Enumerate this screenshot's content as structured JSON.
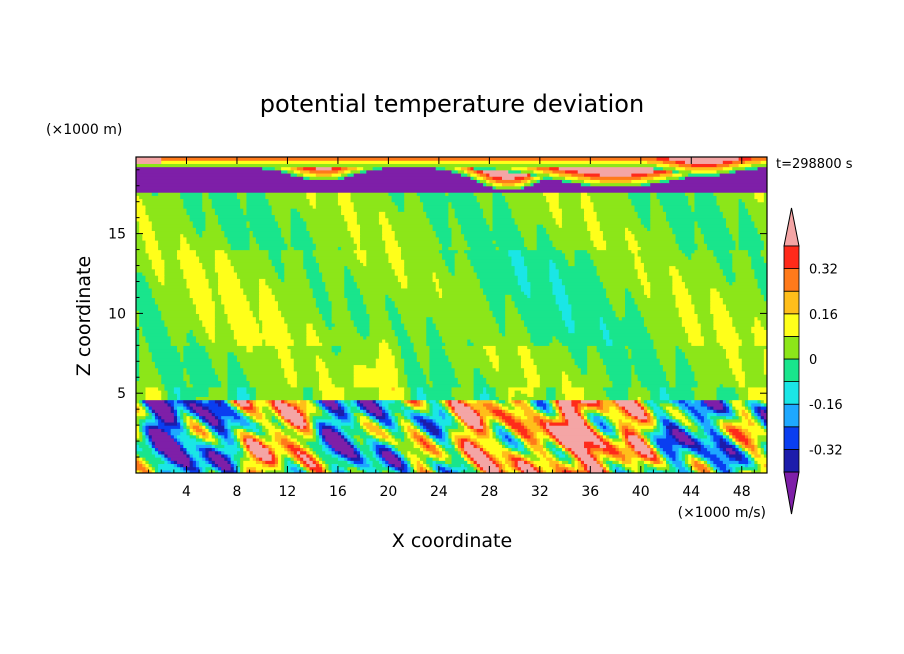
{
  "chart_data": {
    "type": "heatmap",
    "title": "potential temperature deviation",
    "xlabel": "X coordinate",
    "ylabel": "Z coordinate",
    "x_unit": "(×1000 m/s)",
    "y_unit": "(×1000 m)",
    "time_label": "t=298800 s",
    "xlim": [
      0,
      50
    ],
    "ylim": [
      0,
      19.8
    ],
    "x_ticks": [
      4,
      8,
      12,
      16,
      20,
      24,
      28,
      32,
      36,
      40,
      44,
      48
    ],
    "y_ticks": [
      5,
      10,
      15
    ],
    "colorbar": {
      "levels": [
        -0.4,
        -0.32,
        -0.24,
        -0.16,
        -0.08,
        0,
        0.08,
        0.16,
        0.24,
        0.32,
        0.4
      ],
      "colors": [
        "#7e1fa8",
        "#1c1cab",
        "#0a3ef0",
        "#1ea8ff",
        "#1ae6e6",
        "#19e58c",
        "#8ce619",
        "#ffff1a",
        "#ffbe1a",
        "#ff7a1a",
        "#ff2a1a",
        "#f4a5a5"
      ],
      "labels": [
        "0.32",
        "0.16",
        "0",
        "-0.16",
        "-0.32"
      ],
      "label_values": [
        0.32,
        0.16,
        0,
        -0.16,
        -0.32
      ]
    }
  }
}
